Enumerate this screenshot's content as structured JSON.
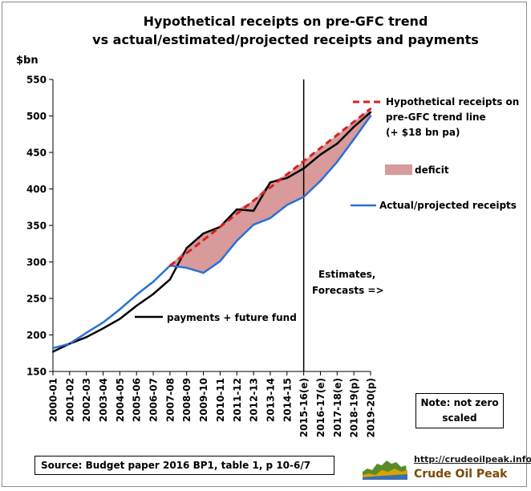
{
  "chart_data": {
    "type": "line",
    "title_line1": "Hypothetical receipts on pre-GFC trend",
    "title_line2": "vs actual/estimated/projected receipts and payments",
    "ylabel": "$bn",
    "ylim": [
      150,
      550
    ],
    "yticks": [
      "150",
      "200",
      "250",
      "300",
      "350",
      "400",
      "450",
      "500",
      "550"
    ],
    "categories": [
      "2000-01",
      "2001-02",
      "2002-03",
      "2003-04",
      "2004-05",
      "2005-06",
      "2006-07",
      "2007-08",
      "2008-09",
      "2009-10",
      "2010-11",
      "2011-12",
      "2012-13",
      "2013-14",
      "2014-15",
      "2015-16(e)",
      "2016-17(e)",
      "2017-18(e)",
      "2018-19(p)",
      "2019-20(p)"
    ],
    "grid": false,
    "series": [
      {
        "name": "Actual/projected receipts",
        "color": "#2a6fd6",
        "dash": false,
        "values": [
          182,
          188,
          203,
          217,
          235,
          255,
          273,
          295,
          292,
          285,
          301,
          329,
          351,
          360,
          378,
          389,
          411,
          437,
          468,
          500
        ]
      },
      {
        "name": "payments + future fund",
        "color": "#000000",
        "dash": false,
        "values": [
          177,
          188,
          197,
          209,
          222,
          240,
          256,
          276,
          319,
          339,
          348,
          372,
          370,
          409,
          415,
          428,
          447,
          462,
          485,
          505
        ]
      },
      {
        "name": "Hypothetical receipts on pre-GFC trend line (+ $18 bn pa)",
        "color": "#d42020",
        "dash": true,
        "start_index": 7,
        "values": [
          null,
          null,
          null,
          null,
          null,
          null,
          null,
          295,
          312,
          330,
          348,
          366,
          384,
          402,
          420,
          438,
          456,
          474,
          492,
          510
        ]
      }
    ],
    "deficit": {
      "label": "deficit",
      "color": "#d89a9a"
    },
    "divider_index": 15,
    "legend": [
      {
        "key": "hypothetical",
        "line1": "Hypothetical receipts on",
        "line2": "pre-GFC trend line",
        "line3": "(+ $18 bn pa)"
      },
      {
        "key": "deficit",
        "line1": "deficit"
      },
      {
        "key": "receipts",
        "line1": "Actual/projected receipts"
      },
      {
        "key": "payments",
        "line1": "payments + future fund"
      }
    ],
    "annotation": {
      "line1": "Estimates,",
      "line2": "Forecasts =>"
    }
  },
  "source_text": "Source: Budget paper 2016 BP1, table 1, p 10-6/7",
  "note_line1": "Note: not zero",
  "note_line2": "scaled",
  "logo": {
    "url": "http://crudeoilpeak.info",
    "name": "Crude Oil Peak"
  },
  "colors": {
    "receipts": "#2a6fd6",
    "payments": "#000000",
    "hypothetical": "#d42020",
    "deficit": "#d89a9a"
  }
}
